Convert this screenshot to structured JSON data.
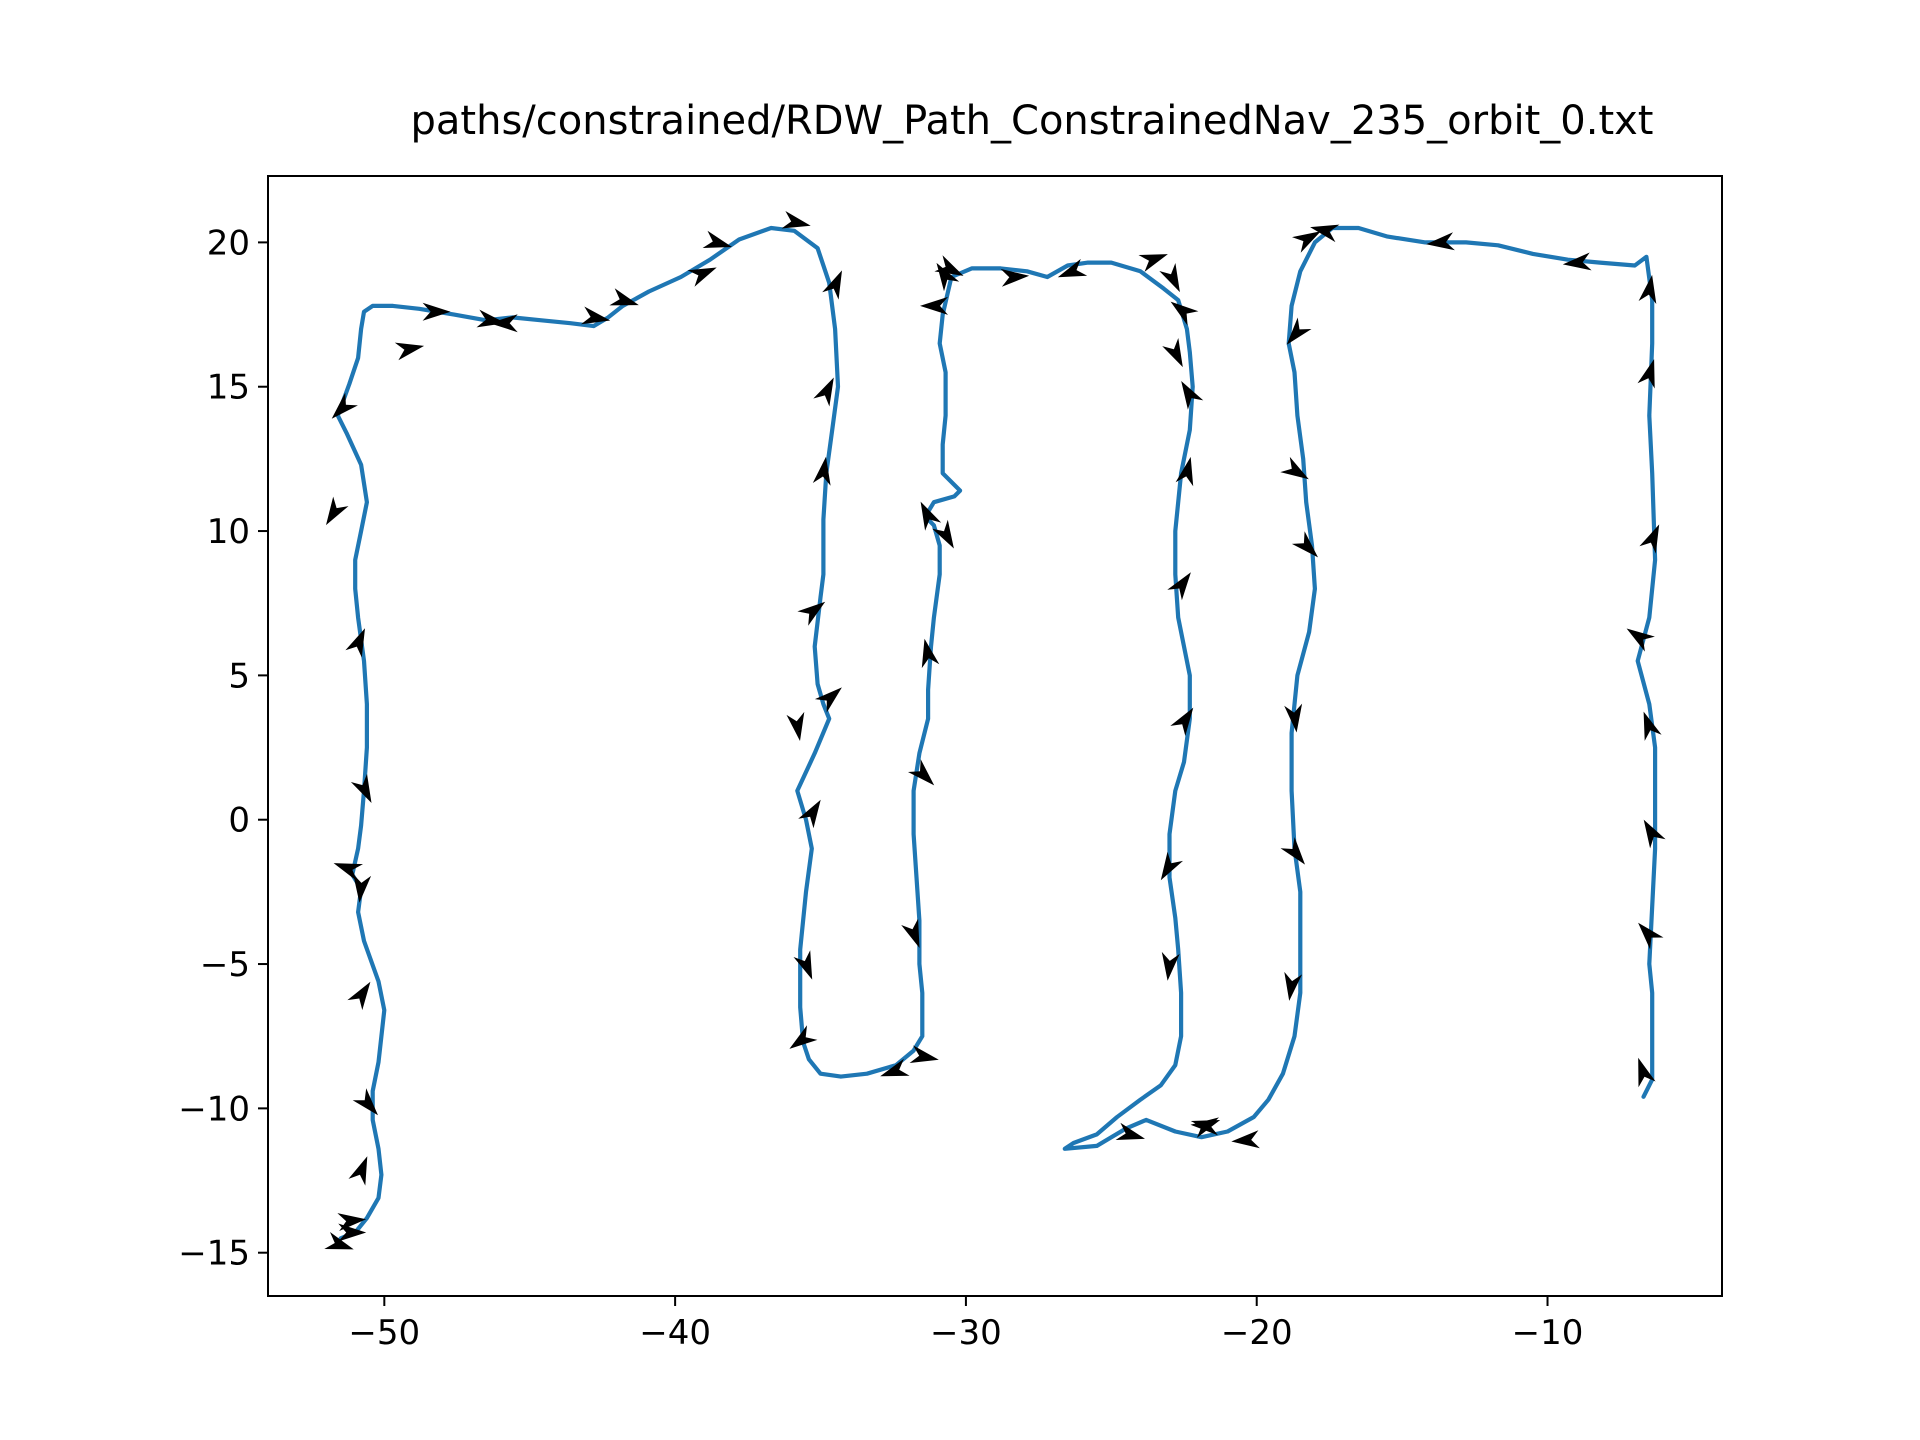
{
  "chart_data": {
    "type": "line",
    "title": "paths/constrained/RDW_Path_ConstrainedNav_235_orbit_0.txt",
    "xlabel": "",
    "ylabel": "",
    "xlim": [
      -54,
      -4
    ],
    "ylim": [
      -16.5,
      22.3
    ],
    "xticks": [
      -50,
      -40,
      -30,
      -20,
      -10
    ],
    "yticks": [
      -15,
      -10,
      -5,
      0,
      5,
      10,
      15,
      20
    ],
    "xtick_labels": [
      "−50",
      "−40",
      "−30",
      "−20",
      "−10"
    ],
    "ytick_labels": [
      "−15",
      "−10",
      "−5",
      "0",
      "5",
      "10",
      "15",
      "20"
    ],
    "grid": false,
    "legend": "none",
    "series": [
      {
        "color": "#1f77b4",
        "x": [
          -50.6,
          -51.0,
          -51.5,
          -51.0,
          -50.6,
          -50.2,
          -50.1,
          -50.2,
          -50.4,
          -50.4,
          -50.2,
          -50.0,
          -50.2,
          -50.7,
          -50.9,
          -50.8,
          -51.1,
          -50.9,
          -50.8,
          -50.7,
          -50.6,
          -50.6,
          -50.7,
          -50.9,
          -51.0,
          -51.0,
          -50.8,
          -50.6,
          -50.8,
          -51.3,
          -51.6,
          -51.2,
          -50.9,
          -50.8,
          -50.7,
          -50.4,
          -49.7,
          -48.8,
          -47.6,
          -46.5,
          -45.6,
          -44.6,
          -43.6,
          -42.8,
          -42.3,
          -41.8,
          -40.9,
          -39.8,
          -38.8,
          -37.8,
          -36.7,
          -35.9,
          -35.1,
          -34.7,
          -34.5,
          -34.4,
          -34.6,
          -34.8,
          -34.9,
          -34.9,
          -35.0,
          -35.2,
          -35.1,
          -34.9,
          -34.7,
          -35.2,
          -35.8,
          -35.5,
          -35.3,
          -35.5,
          -35.7,
          -35.7,
          -35.6,
          -35.4,
          -35.0,
          -34.3,
          -33.4,
          -32.4,
          -31.8,
          -31.5,
          -31.5,
          -31.6,
          -31.6,
          -31.7,
          -31.8,
          -31.8,
          -31.6,
          -31.3,
          -31.3,
          -31.2,
          -31.1,
          -30.9,
          -30.9,
          -31.1,
          -31.4,
          -31.1,
          -30.4,
          -30.2,
          -30.8,
          -30.8,
          -30.7,
          -30.7,
          -30.9,
          -30.8,
          -30.5,
          -29.8,
          -28.8,
          -27.9,
          -27.2,
          -26.5,
          -25.8,
          -25.0,
          -24.0,
          -23.2,
          -22.7,
          -22.4,
          -22.3,
          -22.2,
          -22.3,
          -22.6,
          -22.8,
          -22.8,
          -22.7,
          -22.5,
          -22.3,
          -22.3,
          -22.5,
          -22.8,
          -23.0,
          -23.0,
          -22.8,
          -22.7,
          -22.6,
          -22.6,
          -22.8,
          -23.3,
          -24.0,
          -24.8,
          -25.5,
          -26.3,
          -26.6,
          -25.5,
          -24.5,
          -23.8,
          -22.8,
          -21.9,
          -21.0,
          -20.1,
          -19.6,
          -19.1,
          -18.7,
          -18.5,
          -18.5,
          -18.5,
          -18.7,
          -18.8,
          -18.8,
          -18.6,
          -18.2,
          -18.0,
          -18.1,
          -18.3,
          -18.4,
          -18.6,
          -18.7,
          -18.9,
          -18.8,
          -18.5,
          -18.0,
          -17.4,
          -16.5,
          -15.5,
          -14.2,
          -12.8,
          -11.7,
          -10.5,
          -9.3,
          -8.2,
          -7.0,
          -6.6,
          -6.4,
          -6.4,
          -6.5,
          -6.4,
          -6.3,
          -6.5,
          -6.9,
          -6.5,
          -6.3,
          -6.3,
          -6.3,
          -6.4,
          -6.5,
          -6.4,
          -6.4,
          -6.4,
          -6.7
        ],
        "y": [
          -13.8,
          -14.3,
          -14.5,
          -14.3,
          -13.8,
          -13.1,
          -12.3,
          -11.4,
          -10.4,
          -9.4,
          -8.4,
          -6.6,
          -5.6,
          -4.2,
          -3.2,
          -2.4,
          -1.9,
          -1.0,
          -0.2,
          1.0,
          2.5,
          4.0,
          5.5,
          7.0,
          8.0,
          9.0,
          10.0,
          11.0,
          12.3,
          13.4,
          14.0,
          15.1,
          16.0,
          17.0,
          17.6,
          17.8,
          17.8,
          17.7,
          17.5,
          17.3,
          17.4,
          17.3,
          17.2,
          17.1,
          17.4,
          17.8,
          18.3,
          18.8,
          19.4,
          20.1,
          20.5,
          20.4,
          19.8,
          18.6,
          17.0,
          15.0,
          13.5,
          12.0,
          10.4,
          8.5,
          7.7,
          6.0,
          4.7,
          4.0,
          3.5,
          2.3,
          1.0,
          0.0,
          -1.0,
          -2.5,
          -4.5,
          -6.5,
          -7.7,
          -8.3,
          -8.8,
          -8.9,
          -8.8,
          -8.5,
          -8.0,
          -7.5,
          -6.0,
          -5.0,
          -3.5,
          -2.0,
          -0.5,
          1.0,
          2.3,
          3.5,
          4.5,
          6.0,
          7.0,
          8.5,
          9.5,
          10.2,
          10.5,
          11.0,
          11.2,
          11.4,
          12.0,
          13.0,
          14.0,
          15.5,
          16.5,
          17.5,
          18.8,
          19.1,
          19.1,
          19.0,
          18.8,
          19.2,
          19.3,
          19.3,
          19.0,
          18.4,
          18.0,
          17.0,
          16.2,
          15.0,
          13.5,
          12.0,
          10.0,
          8.5,
          7.0,
          6.0,
          5.0,
          3.5,
          2.0,
          1.0,
          -0.5,
          -2.0,
          -3.4,
          -4.5,
          -6.0,
          -7.5,
          -8.5,
          -9.2,
          -9.7,
          -10.3,
          -10.9,
          -11.2,
          -11.4,
          -11.3,
          -10.7,
          -10.4,
          -10.8,
          -11.0,
          -10.8,
          -10.3,
          -9.7,
          -8.8,
          -7.5,
          -6.0,
          -4.5,
          -2.5,
          -1.0,
          1.0,
          3.0,
          5.0,
          6.5,
          8.0,
          9.5,
          11.0,
          12.5,
          14.0,
          15.5,
          16.5,
          17.8,
          19.0,
          20.0,
          20.5,
          20.5,
          20.2,
          20.0,
          20.0,
          19.9,
          19.6,
          19.4,
          19.3,
          19.2,
          19.5,
          18.0,
          16.5,
          14.0,
          12.0,
          9.0,
          7.0,
          5.5,
          4.0,
          2.5,
          1.0,
          -1.0,
          -3.0,
          -5.0,
          -6.0,
          -7.5,
          -9.0,
          -9.6
        ]
      }
    ],
    "arrows": {
      "color": "#000000",
      "x": [
        -51.2,
        -51.6,
        -51.2,
        -50.8,
        -50.6,
        -50.8,
        -50.8,
        -51.2,
        -50.7,
        -50.9,
        -51.7,
        -51.4,
        -49.2,
        -48.3,
        -46.4,
        -45.8,
        -42.8,
        -41.8,
        -39.1,
        -38.6,
        -35.9,
        -34.5,
        -34.8,
        -34.9,
        -35.3,
        -34.7,
        -35.8,
        -35.3,
        -35.5,
        -35.6,
        -32.4,
        -31.5,
        -31.8,
        -31.5,
        -31.3,
        -30.7,
        -31.3,
        -31.0,
        -30.6,
        -30.7,
        -28.4,
        -26.3,
        -23.6,
        -22.9,
        -22.5,
        -22.8,
        -22.3,
        -22.4,
        -22.6,
        -22.5,
        -23.0,
        -23.0,
        -24.4,
        -21.8,
        -20.3,
        -21.7,
        -18.3,
        -18.6,
        -18.7,
        -18.3,
        -18.7,
        -18.7,
        -18.8,
        -17.6,
        -13.6,
        -8.9,
        -6.5,
        -6.5,
        -6.4,
        -6.8,
        -6.5,
        -6.4,
        -6.5,
        -6.7
      ],
      "y": [
        -14.3,
        -14.7,
        -13.9,
        -12.2,
        -9.8,
        -6.1,
        -2.3,
        -1.7,
        1.1,
        6.1,
        10.7,
        14.3,
        16.3,
        17.6,
        17.3,
        17.2,
        17.4,
        18.0,
        18.9,
        20.0,
        20.7,
        18.5,
        14.8,
        12.0,
        7.2,
        4.2,
        3.3,
        0.2,
        -5.0,
        -7.6,
        -8.7,
        -8.2,
        -3.9,
        1.6,
        5.7,
        9.9,
        10.5,
        17.8,
        19.1,
        18.8,
        18.8,
        19.0,
        19.4,
        18.8,
        17.6,
        16.2,
        14.7,
        12.0,
        8.1,
        3.4,
        -1.6,
        -5.0,
        -10.9,
        -10.6,
        -11.1,
        -10.6,
        20.1,
        16.9,
        12.1,
        9.5,
        3.6,
        -1.1,
        -5.7,
        20.4,
        20.0,
        19.3,
        18.3,
        15.4,
        9.7,
        6.3,
        3.2,
        -0.5,
        -4.0,
        -8.8
      ],
      "dx": [
        3.5,
        1.5,
        2.0,
        0.4,
        0.8,
        0.4,
        -0.1,
        -1.4,
        0.5,
        0.4,
        -0.5,
        -0.6,
        2.0,
        2.0,
        1.8,
        -1.7,
        1.6,
        1.3,
        1.4,
        1.4,
        1.8,
        0.5,
        0.5,
        0.2,
        0.8,
        0.8,
        0.1,
        0.5,
        0.4,
        -0.7,
        -1.2,
        1.0,
        0.3,
        0.6,
        -0.2,
        0.4,
        -0.4,
        -1.7,
        0.8,
        -0.7,
        1.4,
        -1.6,
        1.7,
        0.3,
        -0.8,
        0.3,
        -0.3,
        0.3,
        0.5,
        0.4,
        -0.6,
        -0.1,
        1.8,
        1.4,
        -1.2,
        -1.7,
        0.9,
        -0.5,
        0.8,
        0.8,
        0.1,
        0.8,
        -0.2,
        -1.3,
        -1.9,
        -1.9,
        0.2,
        0.3,
        0.5,
        -0.6,
        -0.4,
        -0.7,
        -0.9,
        -0.4
      ],
      "dy": [
        0.0,
        -0.5,
        0.2,
        1.0,
        -0.9,
        0.6,
        -1.0,
        0.5,
        -1.0,
        0.9,
        -0.8,
        -0.6,
        0.4,
        0.0,
        -0.3,
        0.0,
        -0.3,
        -0.4,
        0.6,
        -0.4,
        -0.4,
        1.1,
        1.0,
        1.3,
        0.6,
        0.7,
        -0.6,
        0.8,
        -1.0,
        -0.5,
        -0.4,
        -0.2,
        -0.8,
        -0.6,
        0.9,
        -0.7,
        0.8,
        0.0,
        -0.4,
        1.1,
        0.1,
        -0.6,
        0.6,
        -0.6,
        0.6,
        -0.6,
        0.5,
        1.3,
        0.7,
        0.6,
        -1.0,
        -0.9,
        -0.5,
        0.5,
        -0.1,
        0.1,
        0.5,
        -0.6,
        -0.5,
        -0.8,
        -0.8,
        -1.0,
        -1.4,
        0.3,
        -0.2,
        -0.2,
        1.2,
        1.0,
        1.1,
        0.4,
        1.1,
        1.2,
        1.0,
        1.2
      ]
    }
  }
}
